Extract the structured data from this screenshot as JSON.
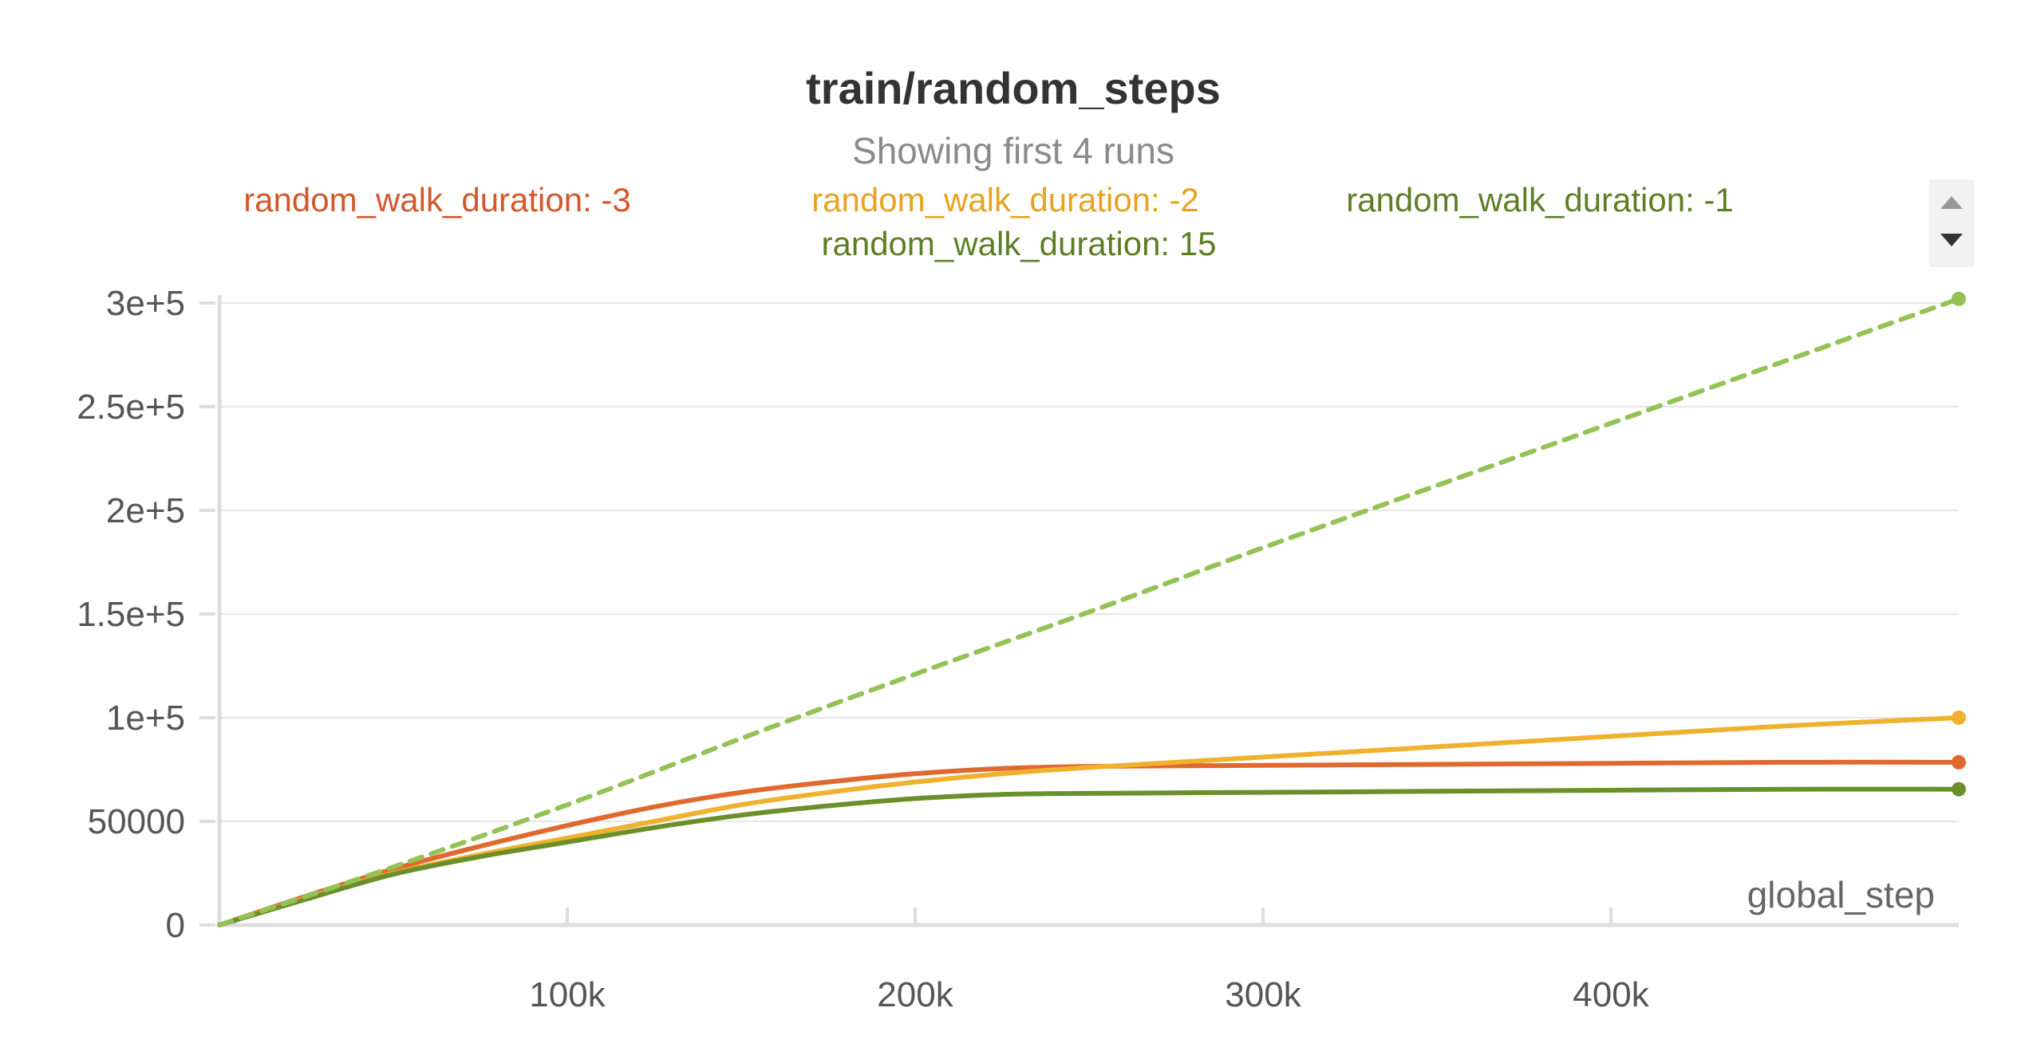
{
  "chart_data": {
    "type": "line",
    "title": "train/random_steps",
    "subtitle": "Showing first 4 runs",
    "xlabel": "global_step",
    "ylabel": "",
    "xlim": [
      0,
      500000
    ],
    "ylim": [
      0,
      300000
    ],
    "x_ticks": [
      {
        "value": 100000,
        "label": "100k"
      },
      {
        "value": 200000,
        "label": "200k"
      },
      {
        "value": 300000,
        "label": "300k"
      },
      {
        "value": 400000,
        "label": "400k"
      }
    ],
    "y_ticks": [
      {
        "value": 0,
        "label": "0"
      },
      {
        "value": 50000,
        "label": "50000"
      },
      {
        "value": 100000,
        "label": "1e+5"
      },
      {
        "value": 150000,
        "label": "1.5e+5"
      },
      {
        "value": 200000,
        "label": "2e+5"
      },
      {
        "value": 250000,
        "label": "2.5e+5"
      },
      {
        "value": 300000,
        "label": "3e+5"
      }
    ],
    "grid": true,
    "legend_position": "top",
    "series": [
      {
        "name": "random_walk_duration: -3",
        "color": "#e0692f",
        "legend_color": "#d4572a",
        "dashed": false,
        "x": [
          0,
          25000,
          50000,
          75000,
          100000,
          125000,
          150000,
          175000,
          200000,
          225000,
          250000,
          300000,
          350000,
          400000,
          450000,
          500000
        ],
        "y": [
          0,
          14000,
          27000,
          38000,
          48000,
          57000,
          64000,
          69000,
          73000,
          75500,
          76500,
          77000,
          77500,
          78000,
          78500,
          78500
        ]
      },
      {
        "name": "random_walk_duration: -2",
        "color": "#f0b12f",
        "legend_color": "#e8a21e",
        "dashed": false,
        "x": [
          0,
          25000,
          50000,
          75000,
          100000,
          125000,
          150000,
          175000,
          200000,
          225000,
          250000,
          300000,
          350000,
          400000,
          450000,
          500000
        ],
        "y": [
          0,
          13000,
          25000,
          34000,
          42000,
          50000,
          58000,
          64000,
          69000,
          73000,
          76000,
          81000,
          86000,
          91000,
          96000,
          100000
        ]
      },
      {
        "name": "random_walk_duration: -1",
        "color": "#6b8f2a",
        "legend_color": "#5c7f24",
        "dashed": false,
        "x": [
          0,
          25000,
          50000,
          75000,
          100000,
          125000,
          150000,
          175000,
          200000,
          225000,
          250000,
          300000,
          350000,
          400000,
          450000,
          500000
        ],
        "y": [
          0,
          12500,
          24500,
          33000,
          40000,
          47000,
          53000,
          57500,
          61000,
          63000,
          63500,
          64000,
          64500,
          65000,
          65500,
          65500
        ]
      },
      {
        "name": "random_walk_duration: 15",
        "color": "#94c255",
        "legend_color": "#5c7f24",
        "dashed": true,
        "x": [
          0,
          50000,
          100000,
          150000,
          200000,
          250000,
          300000,
          350000,
          400000,
          450000,
          500000
        ],
        "y": [
          0,
          28000,
          58000,
          90000,
          121000,
          151000,
          182000,
          212000,
          242000,
          272000,
          302000
        ]
      }
    ]
  },
  "ui": {
    "scroll_up_icon": "triangle-up-icon",
    "scroll_down_icon": "triangle-down-icon"
  }
}
